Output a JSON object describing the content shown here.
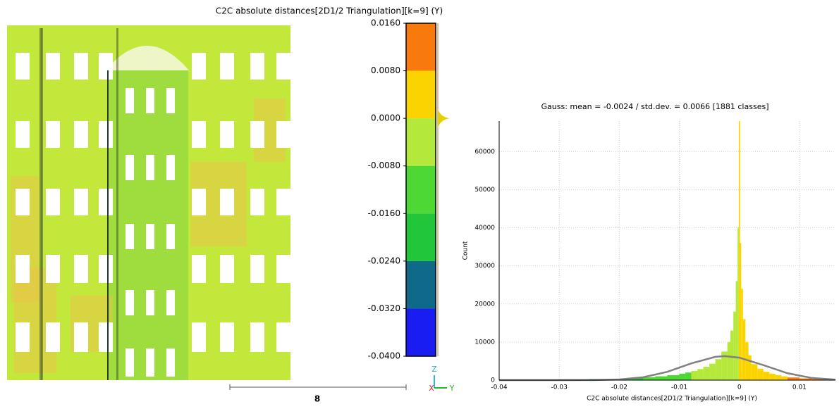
{
  "view3d": {
    "scalar_field_title": "C2C absolute distances[2D1/2 Triangulation][k=9] (Y)",
    "color_scale": {
      "ticks": [
        {
          "value": 0.016,
          "label": "0.0160"
        },
        {
          "value": 0.008,
          "label": "0.0080"
        },
        {
          "value": 0,
          "label": "0.0000"
        },
        {
          "value": -0.008,
          "label": "-0.0080"
        },
        {
          "value": -0.016,
          "label": "-0.0160"
        },
        {
          "value": -0.024,
          "label": "-0.0240"
        },
        {
          "value": -0.032,
          "label": "-0.0320"
        },
        {
          "value": -0.04,
          "label": "-0.0400"
        }
      ],
      "colors": [
        "#f97a0c",
        "#fbd400",
        "#b4e83a",
        "#4ed833",
        "#22c63a",
        "#0f6a8a",
        "#1a1df2"
      ]
    },
    "scale_bar_label": "8",
    "axes": {
      "z": "Z",
      "x": "X",
      "y": "Y"
    }
  },
  "chart_data": {
    "type": "histogram",
    "title": "Gauss: mean = -0.0024 / std.dev. = 0.0066 [1881 classes]",
    "xlabel": "C2C absolute distances[2D1/2 Triangulation][k=9] (Y)",
    "ylabel": "Count",
    "bins": [
      -0.04,
      -0.035,
      -0.03,
      -0.025,
      -0.02,
      -0.018,
      -0.016,
      -0.014,
      -0.012,
      -0.01,
      -0.009,
      -0.008,
      -0.007,
      -0.006,
      -0.005,
      -0.004,
      -0.003,
      -0.002,
      -0.0015,
      -0.001,
      -0.0006,
      -0.0003,
      -0.0001,
      0.0001,
      0.0003,
      0.0006,
      0.001,
      0.0015,
      0.002,
      0.003,
      0.004,
      0.005,
      0.006,
      0.007,
      0.008,
      0.01,
      0.012,
      0.014,
      0.016
    ],
    "values": [
      100,
      150,
      200,
      300,
      400,
      550,
      750,
      1000,
      1300,
      1700,
      2000,
      2400,
      2900,
      3500,
      4300,
      5500,
      7500,
      10000,
      13000,
      18000,
      26000,
      40000,
      68000,
      36000,
      24000,
      16000,
      10000,
      6500,
      4200,
      3000,
      2200,
      1700,
      1300,
      1000,
      700,
      450,
      300,
      200
    ],
    "curve": {
      "color": "#808080",
      "x": [
        -0.04,
        -0.036,
        -0.032,
        -0.028,
        -0.024,
        -0.02,
        -0.016,
        -0.012,
        -0.008,
        -0.004,
        -0.0024,
        0,
        0.004,
        0.008,
        0.012,
        0.016
      ],
      "values": [
        0,
        0,
        0,
        3,
        30,
        180,
        757,
        2185,
        4395,
        6118,
        6300,
        5897,
        3937,
        1821,
        584,
        129
      ]
    },
    "xlim": [
      -0.04,
      0.016
    ],
    "ylim": [
      0,
      68000
    ],
    "xticks": [
      -0.04,
      -0.03,
      -0.02,
      -0.01,
      0,
      0.01
    ],
    "yticks": [
      0,
      10000,
      20000,
      30000,
      40000,
      50000,
      60000
    ],
    "grid": true
  }
}
